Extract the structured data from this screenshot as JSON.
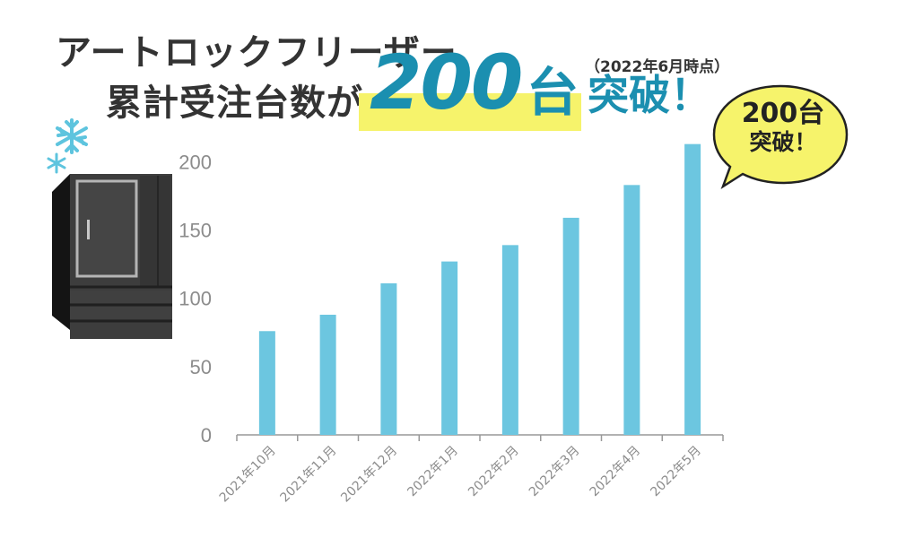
{
  "headline": {
    "line1": "アートロックフリーザー",
    "line2": "累計受注台数が",
    "big_number": "200",
    "big_unit": "台",
    "breakthrough": "突破！",
    "note": "（2022年6月時点）"
  },
  "bubble": {
    "line1": "200台",
    "line2": "突破！",
    "color": "#f6f36b"
  },
  "colors": {
    "bar": "#6cc6e0",
    "accent": "#1b8fb0",
    "highlight": "#f6f36b",
    "freezer_body": "#3d3d3d"
  },
  "icons": {
    "snowflake_large": "snowflake-icon",
    "snowflake_small": "snowflake-icon",
    "freezer": "freezer-icon"
  },
  "chart_data": {
    "type": "bar",
    "title": "アートロックフリーザー累計受注台数",
    "xlabel": "",
    "ylabel": "",
    "ylim": [
      0,
      220
    ],
    "yticks": [
      0,
      50,
      100,
      150,
      200
    ],
    "categories": [
      "2021年10月",
      "2021年11月",
      "2021年12月",
      "2022年1月",
      "2022年2月",
      "2022年3月",
      "2022年4月",
      "2022年5月"
    ],
    "values": [
      76,
      88,
      111,
      127,
      139,
      159,
      183,
      213
    ],
    "grid": false,
    "legend": "none"
  }
}
